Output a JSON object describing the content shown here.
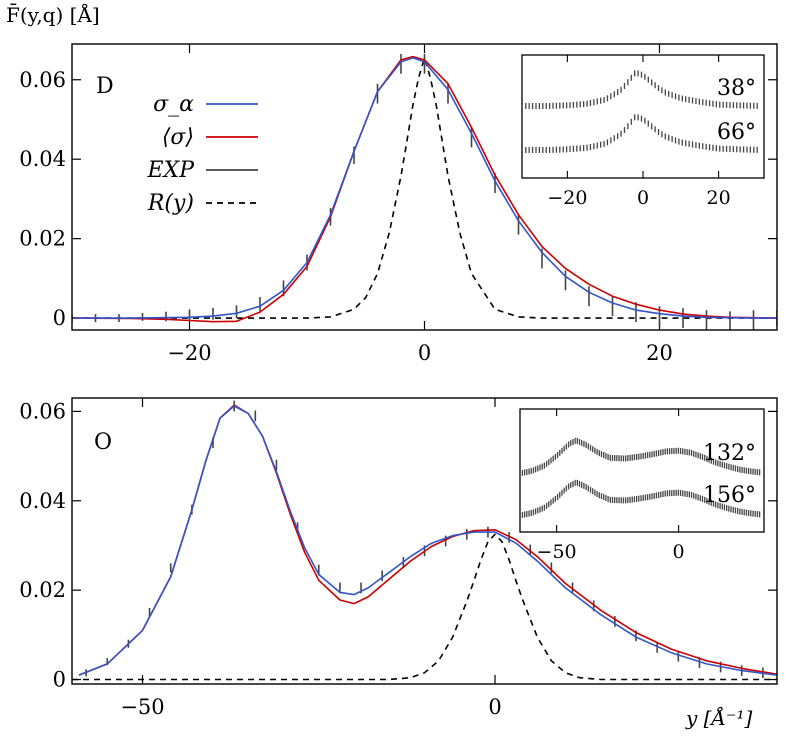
{
  "y_axis_title": "F̄(y,q) [Å]",
  "x_axis_title": "y [Å⁻¹]",
  "legend": [
    {
      "label": "σ_α",
      "color": "#3355cc",
      "dash": "solid"
    },
    {
      "label": "⟨σ⟩",
      "color": "#cc0000",
      "dash": "solid"
    },
    {
      "label": "EXP",
      "color": "#444444",
      "dash": "solid"
    },
    {
      "label": "R(y)",
      "color": "#000000",
      "dash": "dashed"
    }
  ],
  "chart_data": [
    {
      "type": "line",
      "panel_label": "D",
      "xlim": [
        -30,
        30
      ],
      "ylim": [
        -0.003,
        0.069
      ],
      "xticks": [
        -20,
        0,
        20
      ],
      "xtick_labels": [
        "−20",
        "0",
        "20"
      ],
      "yticks": [
        0,
        0.02,
        0.04,
        0.06
      ],
      "ytick_labels": [
        "0",
        "0.02",
        "0.04",
        "0.06"
      ],
      "series": [
        {
          "name": "σ_α",
          "color": "#3355cc",
          "x": [
            -30,
            -25,
            -20,
            -18,
            -16,
            -14,
            -12,
            -10,
            -8,
            -6,
            -4,
            -2,
            -1,
            0,
            2,
            4,
            6,
            8,
            10,
            12,
            14,
            16,
            18,
            20,
            22,
            24,
            26,
            28,
            30
          ],
          "y": [
            0,
            0,
            0.0002,
            0.0005,
            0.0012,
            0.003,
            0.007,
            0.014,
            0.026,
            0.042,
            0.057,
            0.0645,
            0.0655,
            0.0645,
            0.0575,
            0.0465,
            0.0345,
            0.0245,
            0.0165,
            0.0105,
            0.0065,
            0.0038,
            0.002,
            0.0011,
            0.0005,
            0.0002,
            0.0001,
            0,
            0
          ]
        },
        {
          "name": "⟨σ⟩",
          "color": "#cc0000",
          "x": [
            -30,
            -25,
            -22,
            -20,
            -18,
            -16,
            -14,
            -12,
            -10,
            -8,
            -6,
            -4,
            -2,
            -1,
            0,
            2,
            4,
            6,
            8,
            10,
            12,
            14,
            16,
            18,
            20,
            22,
            24,
            26,
            28,
            30
          ],
          "y": [
            0,
            -0.0001,
            -0.0003,
            -0.0006,
            -0.0009,
            -0.0008,
            0.0015,
            0.006,
            0.013,
            0.0255,
            0.042,
            0.057,
            0.065,
            0.0658,
            0.065,
            0.059,
            0.048,
            0.036,
            0.026,
            0.018,
            0.0125,
            0.0085,
            0.0055,
            0.0035,
            0.002,
            0.001,
            0.0005,
            0.0002,
            0.0001,
            0
          ]
        },
        {
          "name": "EXP",
          "color": "#444444",
          "type": "errorbar",
          "x": [
            -30,
            -28,
            -26,
            -24,
            -22,
            -20,
            -18,
            -16,
            -14,
            -12,
            -10,
            -8,
            -6,
            -4,
            -2,
            0,
            2,
            4,
            6,
            8,
            10,
            12,
            14,
            16,
            18,
            20,
            22,
            24,
            26,
            28,
            30
          ],
          "y": [
            0,
            0,
            0,
            0.0003,
            0.0004,
            0.0008,
            0.0011,
            0.0016,
            0.0035,
            0.0075,
            0.014,
            0.0255,
            0.041,
            0.0565,
            0.064,
            0.064,
            0.0565,
            0.0455,
            0.034,
            0.0235,
            0.015,
            0.0095,
            0.0055,
            0.003,
            0.0015,
            0.0005,
            0,
            -0.0005,
            -0.0008,
            -0.0005,
            0
          ],
          "err": [
            0.001,
            0.001,
            0.001,
            0.001,
            0.0012,
            0.0014,
            0.0015,
            0.0016,
            0.0018,
            0.002,
            0.002,
            0.0022,
            0.0022,
            0.0025,
            0.0025,
            0.0025,
            0.0025,
            0.0025,
            0.0025,
            0.0025,
            0.0025,
            0.0025,
            0.0025,
            0.0025,
            0.0025,
            0.0025,
            0.0025,
            0.0025,
            0.0025,
            0.0025,
            0.002
          ]
        },
        {
          "name": "R(y)",
          "color": "#000000",
          "dash": "dashed",
          "x": [
            -30,
            -10,
            -8,
            -6,
            -5,
            -4,
            -3,
            -2,
            -1.5,
            -1,
            -0.5,
            0,
            0.5,
            1,
            2,
            3,
            4,
            6,
            8,
            10,
            30
          ],
          "y": [
            0,
            0,
            0.0003,
            0.0022,
            0.0052,
            0.0112,
            0.0215,
            0.0358,
            0.0445,
            0.0535,
            0.0605,
            0.0655,
            0.0605,
            0.0535,
            0.0358,
            0.0215,
            0.0112,
            0.0022,
            0.0003,
            0,
            0
          ]
        }
      ],
      "inset": {
        "xlim": [
          -32,
          32
        ],
        "xticks": [
          -20,
          0,
          20
        ],
        "xtick_labels": [
          "−20",
          "0",
          "20"
        ],
        "curves": [
          {
            "label": "38°",
            "x": [
              -32,
              -25,
              -20,
              -15,
              -10,
              -6,
              -4,
              -2,
              0,
              2,
              4,
              6,
              10,
              15,
              20,
              25,
              32
            ],
            "y": [
              0.5,
              0.5,
              0.55,
              0.65,
              0.95,
              1.6,
              2.2,
              2.9,
              2.7,
              2.25,
              1.8,
              1.45,
              1.05,
              0.8,
              0.6,
              0.55,
              0.5
            ]
          },
          {
            "label": "66°",
            "x": [
              -32,
              -25,
              -20,
              -15,
              -10,
              -6,
              -4,
              -2,
              0,
              2,
              4,
              6,
              10,
              15,
              20,
              25,
              32
            ],
            "y": [
              0.5,
              0.5,
              0.55,
              0.65,
              0.95,
              1.6,
              2.2,
              2.9,
              2.7,
              2.25,
              1.8,
              1.45,
              1.05,
              0.8,
              0.6,
              0.55,
              0.5
            ]
          }
        ]
      }
    },
    {
      "type": "line",
      "panel_label": "O",
      "xlim": [
        -60,
        40
      ],
      "ylim": [
        -0.001,
        0.063
      ],
      "xticks": [
        -50,
        0
      ],
      "xtick_labels": [
        "−50",
        "0"
      ],
      "yticks": [
        0,
        0.02,
        0.04,
        0.06
      ],
      "ytick_labels": [
        "0",
        "0.02",
        "0.04",
        "0.06"
      ],
      "series": [
        {
          "name": "σ_α",
          "color": "#3355cc",
          "x": [
            -59,
            -55,
            -50,
            -46,
            -43,
            -41,
            -39,
            -37,
            -35,
            -33,
            -31,
            -29,
            -27,
            -25,
            -22,
            -20,
            -18,
            -15,
            -12,
            -9,
            -6,
            -3,
            0,
            3,
            6,
            10,
            15,
            20,
            25,
            30,
            35,
            40
          ],
          "y": [
            0.001,
            0.0035,
            0.011,
            0.023,
            0.038,
            0.049,
            0.0585,
            0.0612,
            0.0595,
            0.0545,
            0.0465,
            0.0375,
            0.0295,
            0.0235,
            0.0195,
            0.019,
            0.0205,
            0.024,
            0.0275,
            0.0305,
            0.0322,
            0.033,
            0.033,
            0.0305,
            0.0265,
            0.0205,
            0.0145,
            0.0095,
            0.006,
            0.0035,
            0.002,
            0.001
          ]
        },
        {
          "name": "⟨σ⟩",
          "color": "#cc0000",
          "x": [
            -59,
            -55,
            -50,
            -46,
            -43,
            -41,
            -39,
            -37,
            -35,
            -33,
            -31,
            -29,
            -27,
            -25,
            -22,
            -20,
            -18,
            -15,
            -12,
            -9,
            -6,
            -3,
            0,
            3,
            6,
            10,
            15,
            20,
            25,
            30,
            35,
            40
          ],
          "y": [
            0.001,
            0.0035,
            0.011,
            0.023,
            0.038,
            0.049,
            0.0585,
            0.0614,
            0.0595,
            0.0545,
            0.0462,
            0.0368,
            0.0285,
            0.0222,
            0.0178,
            0.017,
            0.0185,
            0.0225,
            0.0265,
            0.0298,
            0.032,
            0.0333,
            0.0335,
            0.0313,
            0.0275,
            0.0215,
            0.0155,
            0.0105,
            0.0068,
            0.0042,
            0.0025,
            0.0012
          ]
        },
        {
          "name": "EXP",
          "color": "#444444",
          "type": "errorbar",
          "x": [
            -58,
            -55,
            -52,
            -49,
            -46,
            -43,
            -40,
            -37,
            -34,
            -31,
            -28,
            -25,
            -22,
            -19,
            -16,
            -13,
            -10,
            -7,
            -4,
            -1,
            2,
            5,
            8,
            11,
            14,
            17,
            20,
            23,
            26,
            29,
            32,
            35,
            38
          ],
          "y": [
            0.0015,
            0.004,
            0.008,
            0.015,
            0.025,
            0.038,
            0.053,
            0.0612,
            0.059,
            0.048,
            0.034,
            0.0245,
            0.0205,
            0.0205,
            0.0232,
            0.0262,
            0.0288,
            0.031,
            0.0325,
            0.033,
            0.0318,
            0.029,
            0.025,
            0.0205,
            0.0165,
            0.013,
            0.0098,
            0.0072,
            0.0052,
            0.0038,
            0.0028,
            0.002,
            0.0015
          ],
          "err": [
            0.0008,
            0.0008,
            0.0009,
            0.001,
            0.001,
            0.0011,
            0.0012,
            0.0012,
            0.0012,
            0.0012,
            0.0012,
            0.0012,
            0.0012,
            0.0012,
            0.0012,
            0.0012,
            0.0012,
            0.0012,
            0.0012,
            0.0012,
            0.0012,
            0.0012,
            0.0012,
            0.0012,
            0.0012,
            0.0012,
            0.0012,
            0.0012,
            0.0012,
            0.0012,
            0.0012,
            0.0012,
            0.0012
          ]
        },
        {
          "name": "R(y)",
          "color": "#000000",
          "dash": "dashed",
          "x": [
            -60,
            -15,
            -12,
            -10,
            -8,
            -6,
            -4,
            -3,
            -2,
            -1,
            0,
            1,
            2,
            3,
            4,
            6,
            8,
            10,
            12,
            15,
            40
          ],
          "y": [
            0,
            0,
            0.0004,
            0.0015,
            0.0042,
            0.0095,
            0.0175,
            0.022,
            0.0268,
            0.0308,
            0.0325,
            0.0308,
            0.0268,
            0.022,
            0.0175,
            0.0095,
            0.0042,
            0.0015,
            0.0004,
            0,
            0
          ]
        }
      ],
      "inset": {
        "xlim": [
          -65,
          35
        ],
        "xticks": [
          -50,
          0
        ],
        "xtick_labels": [
          "−50",
          "0"
        ],
        "curves": [
          {
            "label": "132°",
            "x": [
              -65,
              -60,
              -55,
              -50,
              -45,
              -42,
              -38,
              -33,
              -28,
              -22,
              -16,
              -10,
              -5,
              0,
              5,
              10,
              15,
              20,
              25,
              30,
              35
            ],
            "y": [
              0.35,
              0.55,
              0.95,
              1.7,
              2.6,
              2.9,
              2.55,
              1.95,
              1.55,
              1.5,
              1.65,
              1.85,
              2.05,
              2.1,
              1.95,
              1.6,
              1.2,
              0.9,
              0.65,
              0.5,
              0.4
            ]
          },
          {
            "label": "156°",
            "x": [
              -65,
              -60,
              -55,
              -50,
              -45,
              -42,
              -38,
              -33,
              -28,
              -22,
              -16,
              -10,
              -5,
              0,
              5,
              10,
              15,
              20,
              25,
              30,
              35
            ],
            "y": [
              0.35,
              0.55,
              0.95,
              1.7,
              2.6,
              2.9,
              2.55,
              1.95,
              1.55,
              1.5,
              1.65,
              1.85,
              2.05,
              2.1,
              1.95,
              1.6,
              1.2,
              0.9,
              0.65,
              0.5,
              0.4
            ]
          }
        ]
      }
    }
  ]
}
